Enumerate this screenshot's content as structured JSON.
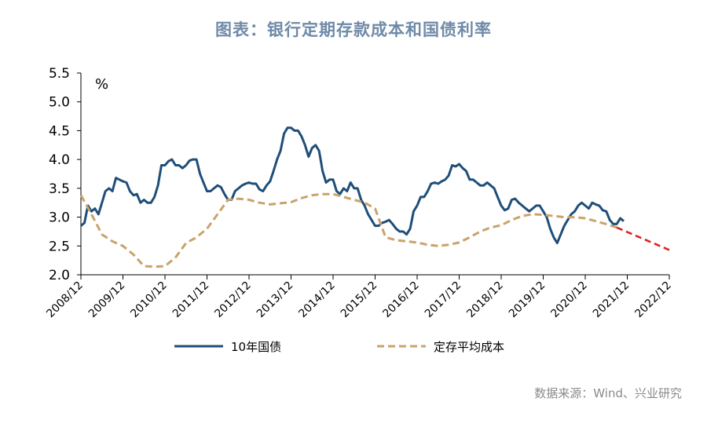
{
  "title": "图表：银行定期存款成本和国债利率",
  "source": "数据来源：Wind、兴业研究",
  "colors": {
    "series_1": "#1f4e79",
    "series_2": "#c9a36a",
    "forecast": "#e02020",
    "axis": "#000000",
    "title": "#6f8aa8"
  },
  "chart_data": {
    "type": "line",
    "ylabel": "%",
    "ylim": [
      2.0,
      5.5
    ],
    "yticks": [
      "2.0",
      "2.5",
      "3.0",
      "3.5",
      "4.0",
      "4.5",
      "5.0",
      "5.5"
    ],
    "xlim": [
      "2008-12",
      "2022-12"
    ],
    "xticks": [
      "2008/12",
      "2009/12",
      "2010/12",
      "2011/12",
      "2012/12",
      "2013/12",
      "2014/12",
      "2015/12",
      "2016/12",
      "2017/12",
      "2018/12",
      "2019/12",
      "2020/12",
      "2021/12",
      "2022/12"
    ],
    "grid": false,
    "legend": "bottom",
    "series": [
      {
        "name": "10年国债",
        "style": "solid",
        "points": [
          [
            "2008-12",
            2.85
          ],
          [
            "2009-01",
            2.9
          ],
          [
            "2009-02",
            3.2
          ],
          [
            "2009-03",
            3.1
          ],
          [
            "2009-04",
            3.15
          ],
          [
            "2009-05",
            3.05
          ],
          [
            "2009-06",
            3.25
          ],
          [
            "2009-07",
            3.45
          ],
          [
            "2009-08",
            3.5
          ],
          [
            "2009-09",
            3.45
          ],
          [
            "2009-10",
            3.68
          ],
          [
            "2009-11",
            3.65
          ],
          [
            "2009-12",
            3.62
          ],
          [
            "2010-01",
            3.6
          ],
          [
            "2010-02",
            3.45
          ],
          [
            "2010-03",
            3.38
          ],
          [
            "2010-04",
            3.4
          ],
          [
            "2010-05",
            3.25
          ],
          [
            "2010-06",
            3.3
          ],
          [
            "2010-07",
            3.25
          ],
          [
            "2010-08",
            3.25
          ],
          [
            "2010-09",
            3.35
          ],
          [
            "2010-10",
            3.55
          ],
          [
            "2010-11",
            3.9
          ],
          [
            "2010-12",
            3.9
          ],
          [
            "2011-01",
            3.97
          ],
          [
            "2011-02",
            4.0
          ],
          [
            "2011-03",
            3.9
          ],
          [
            "2011-04",
            3.9
          ],
          [
            "2011-05",
            3.85
          ],
          [
            "2011-06",
            3.9
          ],
          [
            "2011-07",
            3.98
          ],
          [
            "2011-08",
            4.0
          ],
          [
            "2011-09",
            4.0
          ],
          [
            "2011-10",
            3.75
          ],
          [
            "2011-11",
            3.6
          ],
          [
            "2011-12",
            3.45
          ],
          [
            "2012-01",
            3.45
          ],
          [
            "2012-02",
            3.5
          ],
          [
            "2012-03",
            3.55
          ],
          [
            "2012-04",
            3.52
          ],
          [
            "2012-05",
            3.4
          ],
          [
            "2012-06",
            3.3
          ],
          [
            "2012-07",
            3.3
          ],
          [
            "2012-08",
            3.45
          ],
          [
            "2012-09",
            3.5
          ],
          [
            "2012-10",
            3.55
          ],
          [
            "2012-11",
            3.58
          ],
          [
            "2012-12",
            3.6
          ],
          [
            "2013-01",
            3.58
          ],
          [
            "2013-02",
            3.58
          ],
          [
            "2013-03",
            3.48
          ],
          [
            "2013-04",
            3.45
          ],
          [
            "2013-05",
            3.55
          ],
          [
            "2013-06",
            3.62
          ],
          [
            "2013-07",
            3.8
          ],
          [
            "2013-08",
            4.0
          ],
          [
            "2013-09",
            4.15
          ],
          [
            "2013-10",
            4.45
          ],
          [
            "2013-11",
            4.55
          ],
          [
            "2013-12",
            4.55
          ],
          [
            "2014-01",
            4.5
          ],
          [
            "2014-02",
            4.5
          ],
          [
            "2014-03",
            4.4
          ],
          [
            "2014-04",
            4.25
          ],
          [
            "2014-05",
            4.05
          ],
          [
            "2014-06",
            4.2
          ],
          [
            "2014-07",
            4.25
          ],
          [
            "2014-08",
            4.15
          ],
          [
            "2014-09",
            3.8
          ],
          [
            "2014-10",
            3.6
          ],
          [
            "2014-11",
            3.65
          ],
          [
            "2014-12",
            3.65
          ],
          [
            "2015-01",
            3.45
          ],
          [
            "2015-02",
            3.4
          ],
          [
            "2015-03",
            3.5
          ],
          [
            "2015-04",
            3.45
          ],
          [
            "2015-05",
            3.6
          ],
          [
            "2015-06",
            3.5
          ],
          [
            "2015-07",
            3.5
          ],
          [
            "2015-08",
            3.3
          ],
          [
            "2015-09",
            3.2
          ],
          [
            "2015-10",
            3.05
          ],
          [
            "2015-11",
            2.95
          ],
          [
            "2015-12",
            2.85
          ],
          [
            "2016-01",
            2.85
          ],
          [
            "2016-02",
            2.9
          ],
          [
            "2016-03",
            2.92
          ],
          [
            "2016-04",
            2.95
          ],
          [
            "2016-05",
            2.88
          ],
          [
            "2016-06",
            2.8
          ],
          [
            "2016-07",
            2.75
          ],
          [
            "2016-08",
            2.75
          ],
          [
            "2016-09",
            2.7
          ],
          [
            "2016-10",
            2.8
          ],
          [
            "2016-11",
            3.1
          ],
          [
            "2016-12",
            3.2
          ],
          [
            "2017-01",
            3.35
          ],
          [
            "2017-02",
            3.35
          ],
          [
            "2017-03",
            3.45
          ],
          [
            "2017-04",
            3.58
          ],
          [
            "2017-05",
            3.6
          ],
          [
            "2017-06",
            3.58
          ],
          [
            "2017-07",
            3.62
          ],
          [
            "2017-08",
            3.65
          ],
          [
            "2017-09",
            3.72
          ],
          [
            "2017-10",
            3.9
          ],
          [
            "2017-11",
            3.88
          ],
          [
            "2017-12",
            3.92
          ],
          [
            "2018-01",
            3.85
          ],
          [
            "2018-02",
            3.8
          ],
          [
            "2018-03",
            3.65
          ],
          [
            "2018-04",
            3.65
          ],
          [
            "2018-05",
            3.6
          ],
          [
            "2018-06",
            3.55
          ],
          [
            "2018-07",
            3.55
          ],
          [
            "2018-08",
            3.6
          ],
          [
            "2018-09",
            3.55
          ],
          [
            "2018-10",
            3.5
          ],
          [
            "2018-11",
            3.35
          ],
          [
            "2018-12",
            3.2
          ],
          [
            "2019-01",
            3.12
          ],
          [
            "2019-02",
            3.15
          ],
          [
            "2019-03",
            3.3
          ],
          [
            "2019-04",
            3.32
          ],
          [
            "2019-05",
            3.25
          ],
          [
            "2019-06",
            3.2
          ],
          [
            "2019-07",
            3.15
          ],
          [
            "2019-08",
            3.1
          ],
          [
            "2019-09",
            3.15
          ],
          [
            "2019-10",
            3.2
          ],
          [
            "2019-11",
            3.2
          ],
          [
            "2019-12",
            3.1
          ],
          [
            "2020-01",
            3.0
          ],
          [
            "2020-02",
            2.8
          ],
          [
            "2020-03",
            2.65
          ],
          [
            "2020-04",
            2.55
          ],
          [
            "2020-05",
            2.7
          ],
          [
            "2020-06",
            2.85
          ],
          [
            "2020-07",
            2.95
          ],
          [
            "2020-08",
            3.05
          ],
          [
            "2020-09",
            3.1
          ],
          [
            "2020-10",
            3.2
          ],
          [
            "2020-11",
            3.25
          ],
          [
            "2020-12",
            3.2
          ],
          [
            "2021-01",
            3.15
          ],
          [
            "2021-02",
            3.25
          ],
          [
            "2021-03",
            3.22
          ],
          [
            "2021-04",
            3.2
          ],
          [
            "2021-05",
            3.12
          ],
          [
            "2021-06",
            3.1
          ],
          [
            "2021-07",
            2.95
          ],
          [
            "2021-08",
            2.88
          ],
          [
            "2021-09",
            2.88
          ],
          [
            "2021-10",
            2.98
          ],
          [
            "2021-11",
            2.93
          ]
        ]
      },
      {
        "name": "定存平均成本",
        "style": "dashed",
        "points": [
          [
            "2008-12",
            3.38
          ],
          [
            "2009-03",
            3.05
          ],
          [
            "2009-06",
            2.7
          ],
          [
            "2009-09",
            2.58
          ],
          [
            "2009-12",
            2.5
          ],
          [
            "2010-03",
            2.35
          ],
          [
            "2010-06",
            2.15
          ],
          [
            "2010-09",
            2.14
          ],
          [
            "2010-12",
            2.15
          ],
          [
            "2011-03",
            2.3
          ],
          [
            "2011-06",
            2.55
          ],
          [
            "2011-09",
            2.65
          ],
          [
            "2011-12",
            2.8
          ],
          [
            "2012-03",
            3.05
          ],
          [
            "2012-06",
            3.3
          ],
          [
            "2012-09",
            3.32
          ],
          [
            "2012-12",
            3.3
          ],
          [
            "2013-03",
            3.25
          ],
          [
            "2013-06",
            3.22
          ],
          [
            "2013-09",
            3.24
          ],
          [
            "2013-12",
            3.26
          ],
          [
            "2014-03",
            3.33
          ],
          [
            "2014-06",
            3.38
          ],
          [
            "2014-09",
            3.4
          ],
          [
            "2014-12",
            3.4
          ],
          [
            "2015-03",
            3.35
          ],
          [
            "2015-06",
            3.3
          ],
          [
            "2015-09",
            3.25
          ],
          [
            "2015-12",
            3.15
          ],
          [
            "2016-03",
            2.65
          ],
          [
            "2016-06",
            2.6
          ],
          [
            "2016-09",
            2.58
          ],
          [
            "2016-12",
            2.56
          ],
          [
            "2017-03",
            2.52
          ],
          [
            "2017-06",
            2.5
          ],
          [
            "2017-09",
            2.52
          ],
          [
            "2017-12",
            2.56
          ],
          [
            "2018-03",
            2.65
          ],
          [
            "2018-06",
            2.75
          ],
          [
            "2018-09",
            2.82
          ],
          [
            "2018-12",
            2.86
          ],
          [
            "2019-03",
            2.95
          ],
          [
            "2019-06",
            3.02
          ],
          [
            "2019-09",
            3.05
          ],
          [
            "2019-12",
            3.04
          ],
          [
            "2020-03",
            3.02
          ],
          [
            "2020-06",
            3.0
          ],
          [
            "2020-09",
            3.0
          ],
          [
            "2020-12",
            2.98
          ],
          [
            "2021-03",
            2.93
          ],
          [
            "2021-06",
            2.88
          ],
          [
            "2021-09",
            2.82
          ]
        ]
      },
      {
        "style": "dashed-forecast",
        "points": [
          [
            "2021-09",
            2.82
          ],
          [
            "2022-12",
            2.43
          ]
        ]
      }
    ]
  }
}
